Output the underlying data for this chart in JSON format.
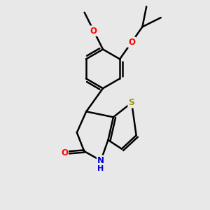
{
  "bg_color": "#e8e8e8",
  "bond_color": "#000000",
  "bond_width": 1.8,
  "S_color": "#999900",
  "O_color": "#ff0000",
  "N_color": "#0000cc",
  "figsize": [
    3.0,
    3.0
  ],
  "dpi": 100,
  "xlim": [
    -2.2,
    2.8
  ],
  "ylim": [
    -2.8,
    2.8
  ],
  "font_size": 8.5
}
